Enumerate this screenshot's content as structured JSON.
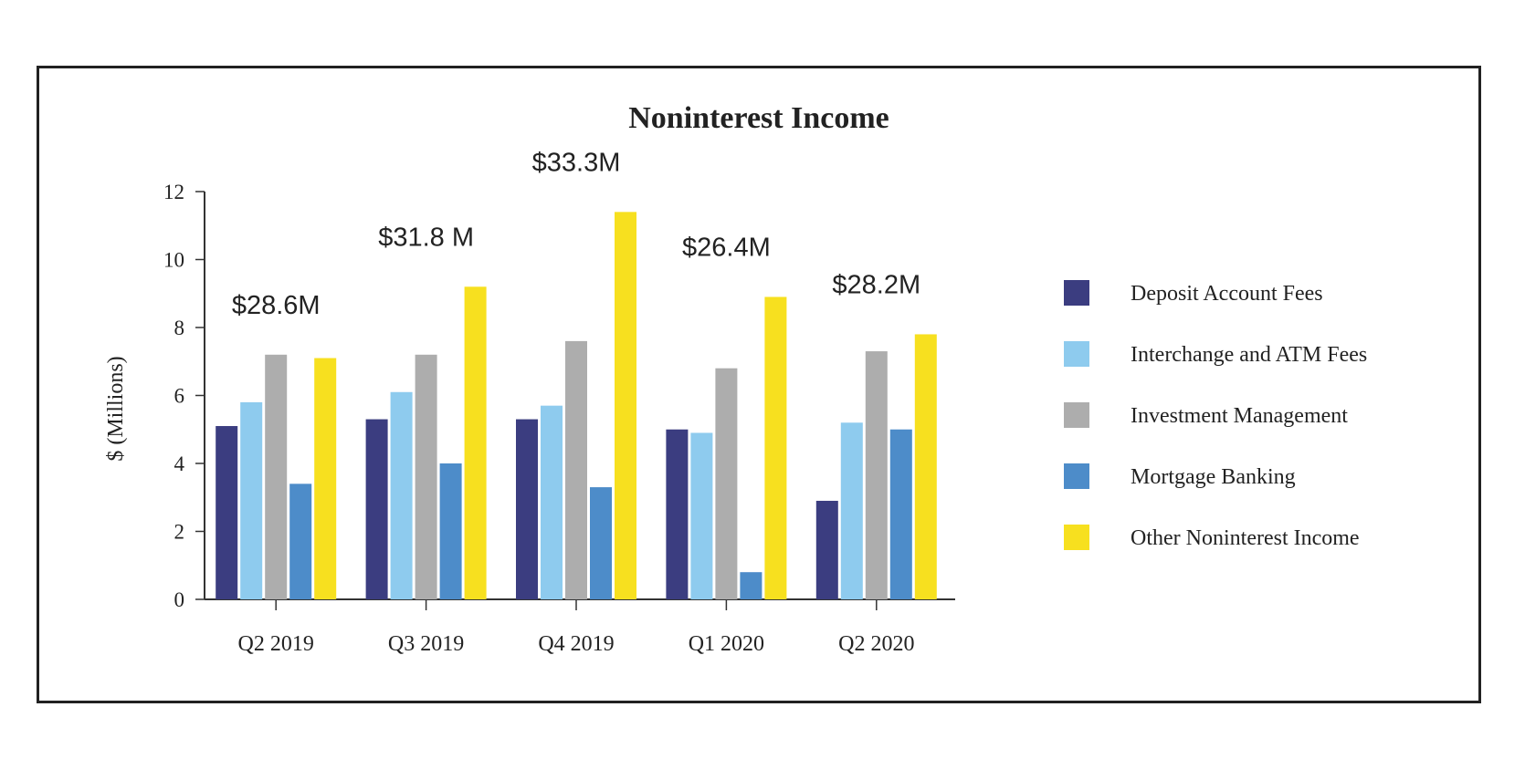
{
  "chart_data": {
    "type": "bar",
    "title": "Noninterest Income",
    "xlabel": "",
    "ylabel": "$ (Millions)",
    "ylim": [
      0,
      12
    ],
    "yticks": [
      0,
      2,
      4,
      6,
      8,
      10,
      12
    ],
    "categories": [
      "Q2 2019",
      "Q3 2019",
      "Q4 2019",
      "Q1 2020",
      "Q2 2020"
    ],
    "totals": [
      "$28.6M",
      "$31.8 M",
      "$33.3M",
      "$26.4M",
      "$28.2M"
    ],
    "legend_position": "right",
    "series": [
      {
        "name": "Deposit Account Fees",
        "color": "#3b3d80",
        "values": [
          5.1,
          5.3,
          5.3,
          5.0,
          2.9
        ]
      },
      {
        "name": "Interchange and ATM Fees",
        "color": "#8ecbee",
        "values": [
          5.8,
          6.1,
          5.7,
          4.9,
          5.2
        ]
      },
      {
        "name": "Investment Management",
        "color": "#adadad",
        "values": [
          7.2,
          7.2,
          7.6,
          6.8,
          7.3
        ]
      },
      {
        "name": "Mortgage Banking",
        "color": "#4d8cc9",
        "values": [
          3.4,
          4.0,
          3.3,
          0.8,
          5.0
        ]
      },
      {
        "name": "Other Noninterest Income",
        "color": "#f7e01f",
        "values": [
          7.1,
          9.2,
          11.4,
          8.9,
          7.8
        ]
      }
    ]
  }
}
